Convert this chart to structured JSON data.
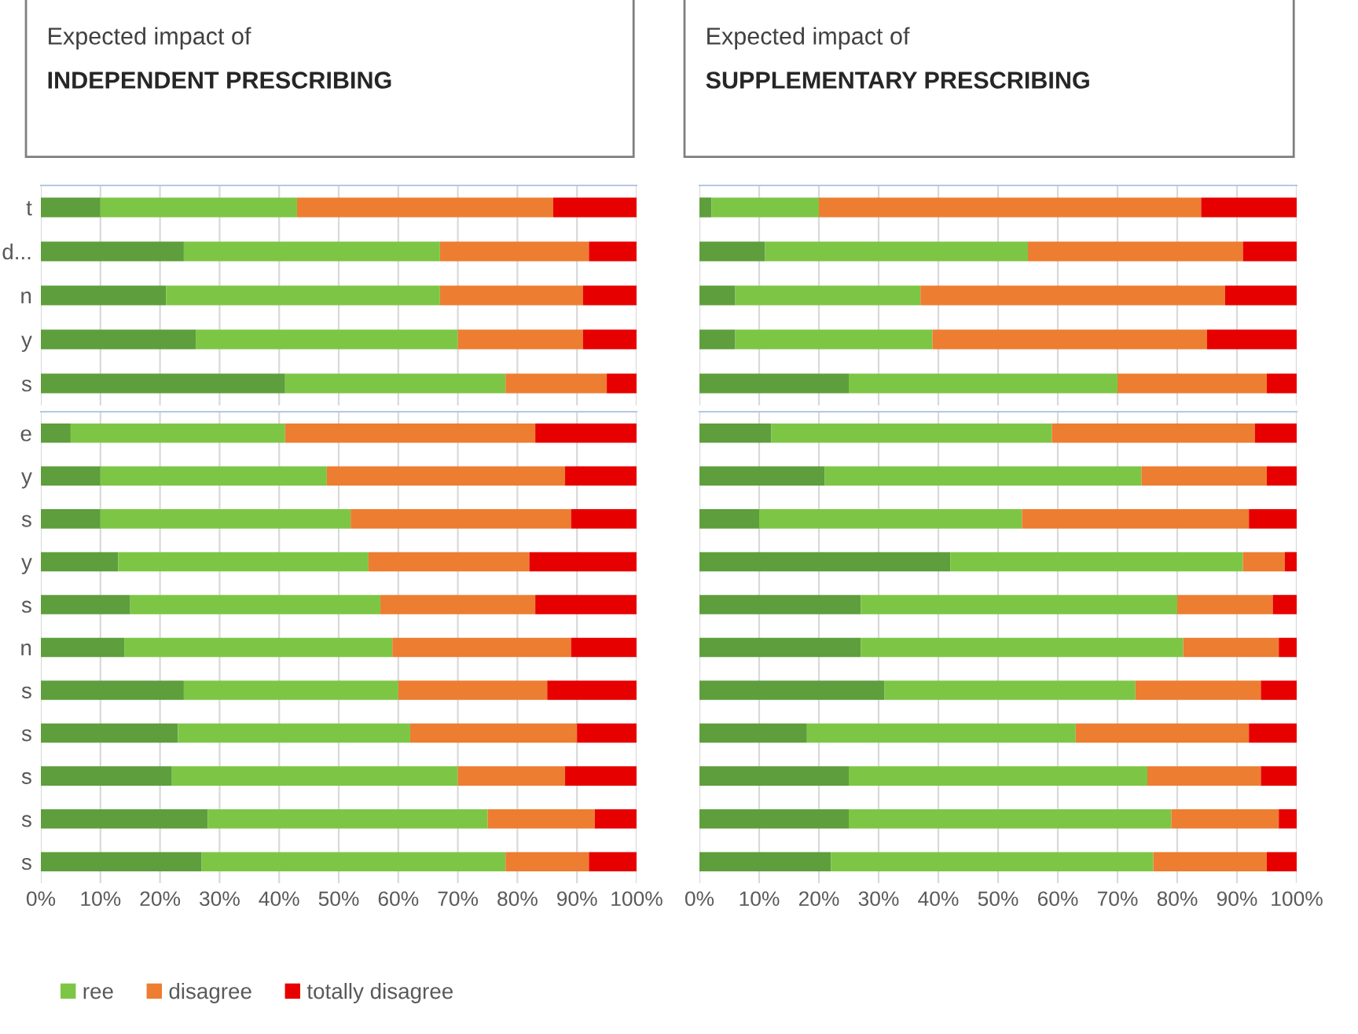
{
  "chart_data": [
    {
      "type": "bar",
      "orientation": "horizontal",
      "stacked": true,
      "title": "Expected impact of",
      "subtitle": "INDEPENDENT PRESCRIBING",
      "categories": [
        "t",
        "d...",
        "n",
        "y",
        "s"
      ],
      "series": [
        {
          "color": "#5e9e3c",
          "values": [
            10,
            24,
            21,
            26,
            41
          ]
        },
        {
          "color": "#7dc645",
          "values": [
            33,
            43,
            46,
            44,
            37
          ]
        },
        {
          "color": "#ed7d31",
          "values": [
            43,
            25,
            24,
            21,
            17
          ]
        },
        {
          "color": "#e60000",
          "values": [
            14,
            8,
            9,
            9,
            5
          ]
        }
      ],
      "xlim": [
        0,
        100
      ],
      "grid": "x",
      "tick_labels": "y"
    },
    {
      "type": "bar",
      "orientation": "horizontal",
      "stacked": true,
      "categories": [
        "e",
        "y",
        "s",
        "y",
        "s",
        "n",
        "s",
        "s",
        "s",
        "s",
        "s"
      ],
      "series": [
        {
          "color": "#5e9e3c",
          "values": [
            5,
            10,
            10,
            13,
            15,
            14,
            24,
            23,
            22,
            28,
            27
          ]
        },
        {
          "name": "ree",
          "color": "#7dc645",
          "values": [
            36,
            38,
            42,
            42,
            42,
            45,
            36,
            39,
            48,
            47,
            51
          ]
        },
        {
          "name": "disagree",
          "color": "#ed7d31",
          "values": [
            42,
            40,
            37,
            27,
            26,
            30,
            25,
            28,
            18,
            18,
            14
          ]
        },
        {
          "name": "totally disagree",
          "color": "#e60000",
          "values": [
            17,
            12,
            11,
            18,
            17,
            11,
            15,
            10,
            12,
            7,
            8
          ]
        }
      ],
      "xlim": [
        0,
        100
      ],
      "xticks": [
        {
          "value": 0,
          "label": "0%"
        },
        {
          "value": 10,
          "label": "10%"
        },
        {
          "value": 20,
          "label": "20%"
        },
        {
          "value": 30,
          "label": "30%"
        },
        {
          "value": 40,
          "label": "40%"
        },
        {
          "value": 50,
          "label": "50%"
        },
        {
          "value": 60,
          "label": "60%"
        },
        {
          "value": 70,
          "label": "70%"
        },
        {
          "value": 80,
          "label": "80%"
        },
        {
          "value": 90,
          "label": "90%"
        },
        {
          "value": 100,
          "label": "100%"
        }
      ],
      "grid": "x",
      "legend": "bottom"
    },
    {
      "type": "bar",
      "orientation": "horizontal",
      "stacked": true,
      "title": "Expected impact of",
      "subtitle": "SUPPLEMENTARY PRESCRIBING",
      "categories": [
        null,
        null,
        null,
        null,
        null
      ],
      "series": [
        {
          "color": "#5e9e3c",
          "values": [
            2,
            11,
            6,
            6,
            25
          ]
        },
        {
          "color": "#7dc645",
          "values": [
            18,
            44,
            31,
            33,
            45
          ]
        },
        {
          "color": "#ed7d31",
          "values": [
            64,
            36,
            51,
            46,
            25
          ]
        },
        {
          "color": "#e60000",
          "values": [
            16,
            9,
            12,
            15,
            5
          ]
        }
      ],
      "xlim": [
        0,
        100
      ],
      "grid": "x",
      "tick_labels": false
    },
    {
      "type": "bar",
      "orientation": "horizontal",
      "stacked": true,
      "categories": [
        null,
        null,
        null,
        null,
        null,
        null,
        null,
        null,
        null,
        null,
        null
      ],
      "series": [
        {
          "color": "#5e9e3c",
          "values": [
            12,
            21,
            10,
            42,
            27,
            27,
            31,
            18,
            25,
            25,
            22
          ]
        },
        {
          "color": "#7dc645",
          "values": [
            47,
            53,
            44,
            49,
            53,
            54,
            42,
            45,
            50,
            54,
            54
          ]
        },
        {
          "color": "#ed7d31",
          "values": [
            34,
            21,
            38,
            7,
            16,
            16,
            21,
            29,
            19,
            18,
            19
          ]
        },
        {
          "color": "#e60000",
          "values": [
            7,
            5,
            8,
            2,
            4,
            3,
            6,
            8,
            6,
            3,
            5
          ]
        }
      ],
      "xlim": [
        0,
        100
      ],
      "xticks": [
        {
          "value": 0,
          "label": "0%"
        },
        {
          "value": 10,
          "label": "10%"
        },
        {
          "value": 20,
          "label": "20%"
        },
        {
          "value": 30,
          "label": "30%"
        },
        {
          "value": 40,
          "label": "40%"
        },
        {
          "value": 50,
          "label": "50%"
        },
        {
          "value": 60,
          "label": "60%"
        },
        {
          "value": 70,
          "label": "70%"
        },
        {
          "value": 80,
          "label": "80%"
        },
        {
          "value": 90,
          "label": "90%"
        },
        {
          "value": 100,
          "label": "100%"
        }
      ],
      "grid": "x",
      "tick_labels": "x"
    }
  ]
}
